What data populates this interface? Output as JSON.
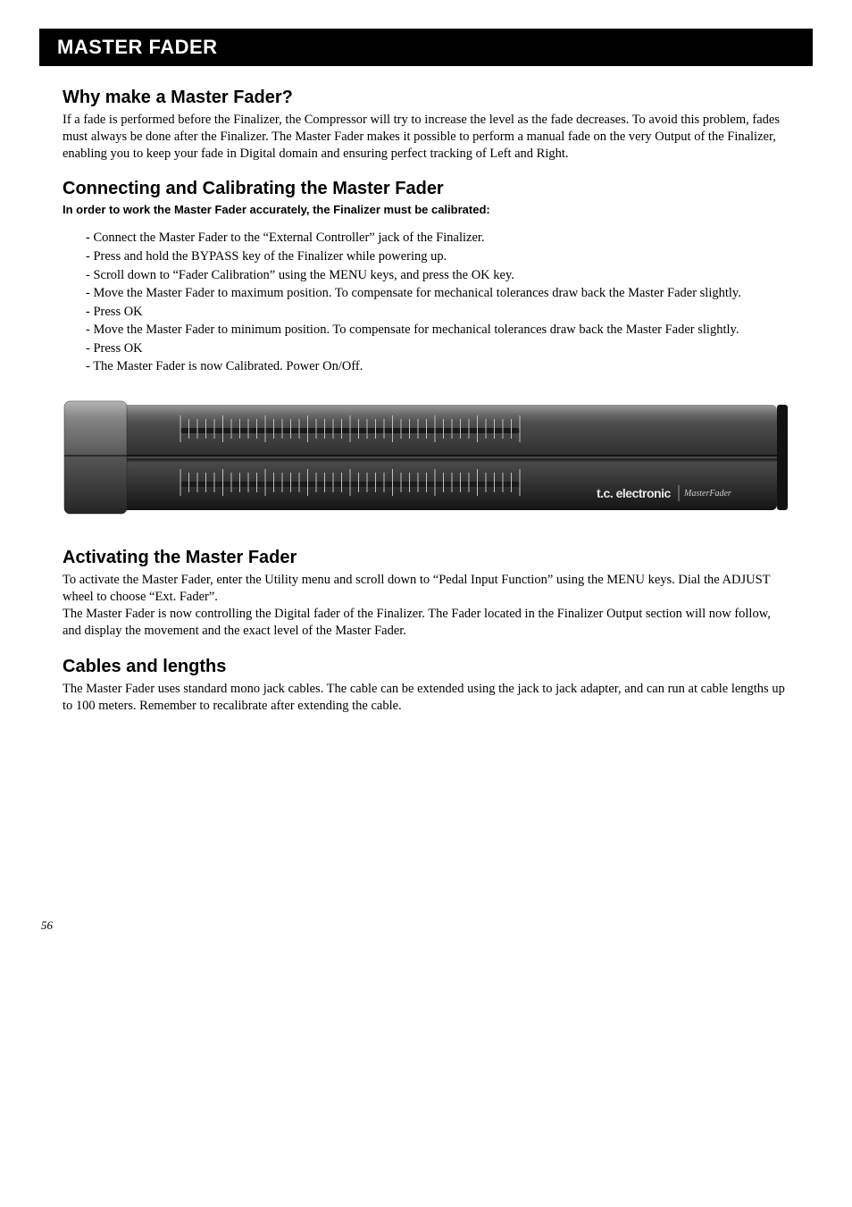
{
  "page": {
    "header": "MASTER FADER",
    "number": "56"
  },
  "sections": {
    "why": {
      "title": "Why make a Master Fader?",
      "body": "If a fade is performed before the Finalizer, the Compressor will try to increase the level as the fade decreases. To avoid this problem, fades must always be done after the Finalizer. The Master Fader makes it possible to perform a manual fade on the very Output of the Finalizer, enabling you to keep your fade in Digital domain and ensuring perfect tracking of Left and Right."
    },
    "connecting": {
      "title": "Connecting and Calibrating the Master Fader",
      "subtitle": "In order to work the Master Fader accurately, the Finalizer must be calibrated:",
      "steps": [
        "Connect the Master Fader to the “External Controller” jack of the Finalizer.",
        "Press and hold the BYPASS key of the Finalizer while powering up.",
        "Scroll down to “Fader Calibration” using the MENU keys, and press the OK key.",
        "Move the Master Fader to maximum position. To compensate for mechanical tolerances draw back the Master Fader slightly.",
        "Press OK",
        "Move the Master Fader to minimum position. To compensate for mechanical tolerances draw back the Master Fader slightly.",
        "Press OK",
        "The Master Fader is now Calibrated. Power On/Off."
      ]
    },
    "activating": {
      "title": "Activating the Master Fader",
      "body1": "To activate the Master Fader, enter the Utility menu and scroll down to “Pedal Input Function” using the MENU keys. Dial the ADJUST wheel to choose “Ext. Fader”.",
      "body2": "The Master Fader is now controlling the Digital fader of the Finalizer. The Fader located in the Finalizer Output section will now follow, and display the movement and the exact level of the Master Fader."
    },
    "cables": {
      "title": "Cables and lengths",
      "body": "The Master Fader uses standard mono jack cables. The cable can be extended using the jack to jack adapter, and can run at cable lengths up to 100 meters. Remember to recalibrate after extending the cable."
    }
  },
  "device": {
    "brand": "t.c. electronic",
    "model": "MasterFader",
    "colors": {
      "chassis_top": "#6f6f6f",
      "chassis_mid": "#3d3d3d",
      "chassis_bot": "#1e1e1e",
      "end_top": "#8a8a8a",
      "end_bot": "#2a2a2a",
      "tick": "#c0c0c0",
      "slot": "#1a1a1a"
    }
  }
}
